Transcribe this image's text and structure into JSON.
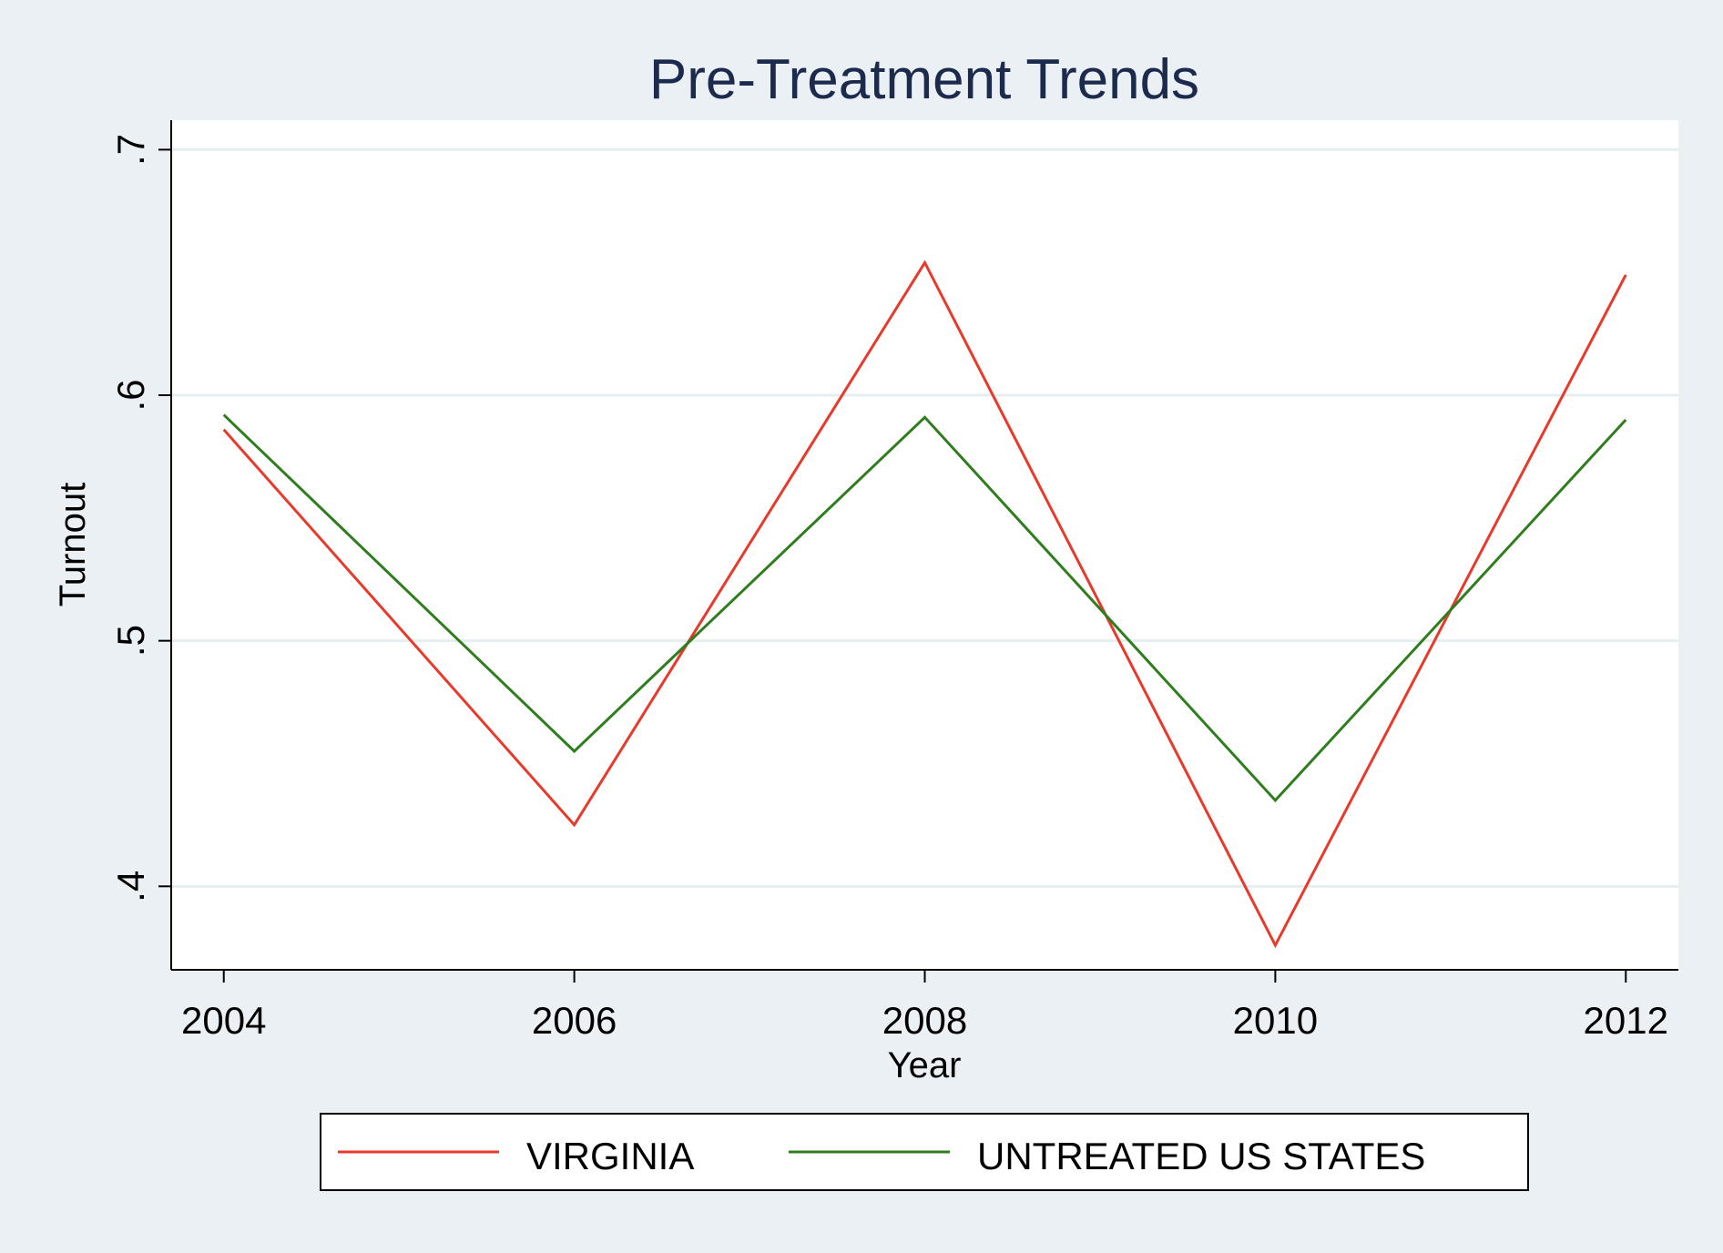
{
  "chart_data": {
    "type": "line",
    "title": "Pre-Treatment Trends",
    "xlabel": "Year",
    "ylabel": "Turnout",
    "x": [
      2004,
      2006,
      2008,
      2010,
      2012
    ],
    "x_tick_labels": [
      "2004",
      "2006",
      "2008",
      "2010",
      "2012"
    ],
    "y_ticks": [
      0.4,
      0.5,
      0.6,
      0.7
    ],
    "y_tick_labels": [
      ".4",
      ".5",
      ".6",
      ".7"
    ],
    "xlim": [
      2003.7,
      2012.3
    ],
    "ylim": [
      0.366,
      0.712
    ],
    "grid": true,
    "legend_position": "bottom",
    "series": [
      {
        "name": "VIRGINIA",
        "color": "#e8392b",
        "values": [
          0.586,
          0.425,
          0.654,
          0.376,
          0.649
        ]
      },
      {
        "name": "UNTREATED US STATES",
        "color": "#2f7d1f",
        "values": [
          0.592,
          0.455,
          0.591,
          0.435,
          0.59
        ]
      }
    ]
  }
}
